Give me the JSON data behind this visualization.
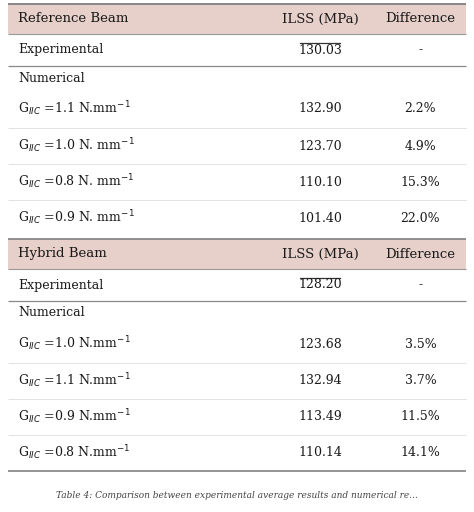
{
  "header1": [
    "Reference Beam",
    "ILSS (MPa)",
    "Difference"
  ],
  "header2": [
    "Hybrid Beam",
    "ILSS (MPa)",
    "Difference"
  ],
  "section1_rows": [
    [
      "Experimental",
      "130.03",
      "-"
    ],
    [
      "Numerical",
      "",
      ""
    ],
    [
      "G$_{IIC}$ =1.1 N.mm$^{-1}$",
      "132.90",
      "2.2%"
    ],
    [
      "G$_{IIC}$ =1.0 N. mm$^{-1}$",
      "123.70",
      "4.9%"
    ],
    [
      "G$_{IIC}$ =0.8 N. mm$^{-1}$",
      "110.10",
      "15.3%"
    ],
    [
      "G$_{IIC}$ =0.9 N. mm$^{-1}$",
      "101.40",
      "22.0%"
    ]
  ],
  "section2_rows": [
    [
      "Experimental",
      "128.20",
      "-"
    ],
    [
      "Numerical",
      "",
      ""
    ],
    [
      "G$_{IIC}$ =1.0 N.mm$^{-1}$",
      "123.68",
      "3.5%"
    ],
    [
      "G$_{IIC}$ =1.1 N.mm$^{-1}$",
      "132.94",
      "3.7%"
    ],
    [
      "G$_{IIC}$ =0.9 N.mm$^{-1}$",
      "113.49",
      "11.5%"
    ],
    [
      "G$_{IIC}$ =0.8 N.mm$^{-1}$",
      "110.14",
      "14.1%"
    ]
  ],
  "header_bg": "#e8d0ca",
  "bg_color": "#ffffff",
  "text_color": "#1a1a1a",
  "caption": "Table 4: Comparison between experimental average results and numerical re...",
  "font_size": 9.0,
  "header_font_size": 9.5
}
